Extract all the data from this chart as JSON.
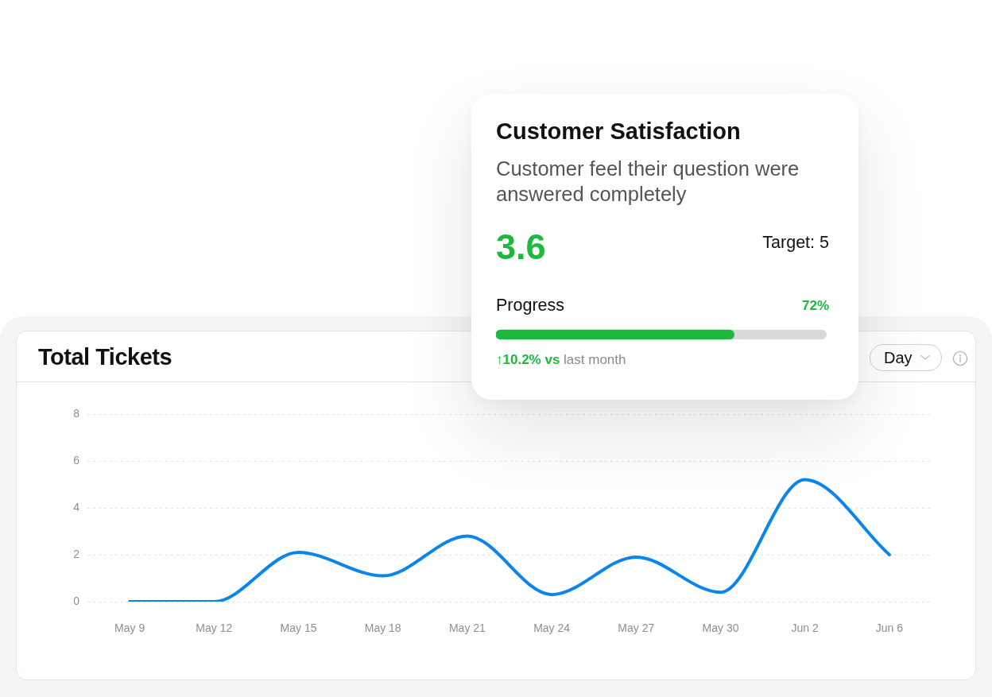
{
  "chart_data": [
    {
      "type": "line",
      "title": "Total Tickets",
      "categories": [
        "May 9",
        "May 12",
        "May 15",
        "May 18",
        "May 21",
        "May 24",
        "May 27",
        "May 30",
        "Jun 2",
        "Jun 6"
      ],
      "values": [
        0,
        0,
        2.1,
        1.1,
        2.8,
        0.3,
        1.9,
        0.4,
        5.2,
        2.0
      ],
      "color": "#0b84ee",
      "ylim": [
        0,
        8
      ],
      "yticks": [
        0,
        2,
        4,
        6,
        8
      ],
      "grid": "y",
      "annotations": [
        "Day"
      ]
    },
    {
      "type": "other",
      "title": "Customer Satisfaction",
      "subtitle": "Customer feel their question were answered completely",
      "categories": [
        "Progress"
      ],
      "values": [
        72
      ],
      "value_labels": [
        "72%"
      ],
      "annotations": [
        "3.6",
        "Target: 5",
        "↑10.2% vs",
        "last month"
      ]
    }
  ]
}
